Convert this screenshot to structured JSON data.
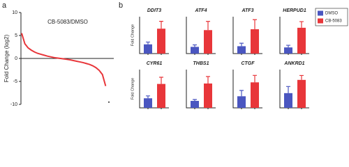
{
  "panel_labels": [
    "a",
    "b"
  ],
  "legend": [
    {
      "name": "DMSO",
      "color": "#4a56c0"
    },
    {
      "name": "CB-5083",
      "color": "#e8363a"
    }
  ],
  "chart_data": [
    {
      "type": "line",
      "annotation": "CB-5083/DMSO",
      "ylabel": "Fold Change (log2)",
      "color": "#e8363a",
      "values": [
        5.5,
        3.2,
        2.3,
        1.8,
        1.4,
        1.1,
        0.9,
        0.7,
        0.5,
        0.35,
        0.2,
        0.1,
        0.0,
        -0.1,
        -0.2,
        -0.3,
        -0.45,
        -0.6,
        -0.75,
        -0.9,
        -1.1,
        -1.3,
        -1.6,
        -2.0,
        -2.6,
        -3.5,
        -6.0
      ],
      "outlier": -9.5,
      "ylim": [
        -10,
        10
      ],
      "yticks": [
        10,
        5,
        0,
        -5,
        -10
      ]
    },
    {
      "type": "bar",
      "title": "DDIT3",
      "ylabel": "Fold Change",
      "values": [
        1,
        2.7
      ],
      "errors": [
        0.25,
        0.8
      ],
      "ylim": [
        0,
        4
      ]
    },
    {
      "type": "bar",
      "title": "ATF4",
      "values": [
        1,
        3.5
      ],
      "errors": [
        0.3,
        1.3
      ],
      "ylim": [
        0,
        5.5
      ]
    },
    {
      "type": "bar",
      "title": "ATF3",
      "values": [
        1,
        3.3
      ],
      "errors": [
        0.4,
        1.3
      ],
      "ylim": [
        0,
        5
      ]
    },
    {
      "type": "bar",
      "title": "HERPUD1",
      "values": [
        1,
        4.2
      ],
      "errors": [
        0.35,
        1.0
      ],
      "ylim": [
        0,
        6
      ]
    },
    {
      "type": "bar",
      "title": "CYR61",
      "ylabel": "Fold Change",
      "values": [
        1,
        2.5
      ],
      "errors": [
        0.25,
        0.7
      ],
      "ylim": [
        0,
        4
      ]
    },
    {
      "type": "bar",
      "title": "THBS1",
      "values": [
        1,
        3.5
      ],
      "errors": [
        0.2,
        1.0
      ],
      "ylim": [
        0,
        5.5
      ]
    },
    {
      "type": "bar",
      "title": "CTGF",
      "values": [
        1,
        2.2
      ],
      "errors": [
        0.5,
        0.6
      ],
      "ylim": [
        0,
        3.3
      ]
    },
    {
      "type": "bar",
      "title": "ANKRD1",
      "values": [
        1,
        1.9
      ],
      "errors": [
        0.45,
        0.3
      ],
      "ylim": [
        0,
        2.6
      ]
    }
  ]
}
